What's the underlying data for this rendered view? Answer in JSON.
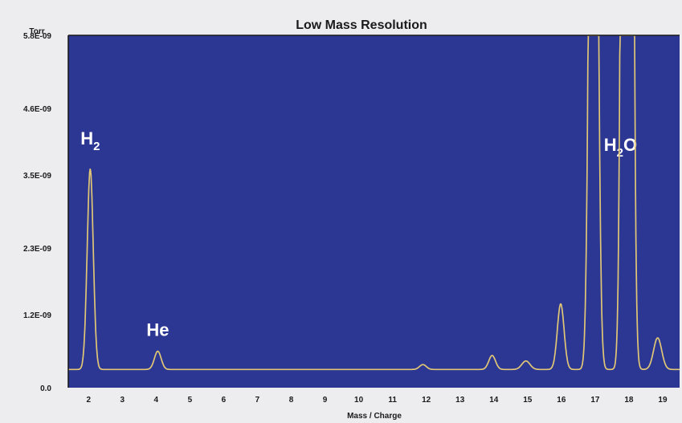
{
  "chart_data": {
    "type": "line",
    "title": "Low Mass Resolution",
    "ylabel": "Torr",
    "xlabel": "Mass / Charge",
    "ylim": [
      0,
      5.8e-09
    ],
    "xlim": [
      1.4,
      19.5
    ],
    "x_ticks": [
      2,
      3,
      4,
      5,
      6,
      7,
      8,
      9,
      10,
      11,
      12,
      13,
      14,
      15,
      16,
      17,
      18,
      19
    ],
    "y_ticks": [
      {
        "value": 5.8e-09,
        "label": "5.8E-09"
      },
      {
        "value": 4.6e-09,
        "label": "4.6E-09"
      },
      {
        "value": 3.5e-09,
        "label": "3.5E-09"
      },
      {
        "value": 2.3e-09,
        "label": "2.3E-09"
      },
      {
        "value": 1.2e-09,
        "label": "1.2E-09"
      },
      {
        "value": 0,
        "label": "0.0"
      }
    ],
    "grid": false,
    "colors": {
      "background": "#2c3794",
      "line": "#e0c675",
      "frame": "#ededf0"
    },
    "baseline": 3e-10,
    "series": [
      {
        "peaks": [
          {
            "x": 2.05,
            "height": 3.6e-09,
            "width": 0.09
          },
          {
            "x": 4.05,
            "height": 6e-10,
            "width": 0.1
          },
          {
            "x": 11.9,
            "height": 3.8e-10,
            "width": 0.1
          },
          {
            "x": 13.95,
            "height": 5.3e-10,
            "width": 0.1
          },
          {
            "x": 14.95,
            "height": 4.4e-10,
            "width": 0.12
          },
          {
            "x": 15.98,
            "height": 1.38e-09,
            "width": 0.1
          },
          {
            "x": 16.95,
            "height": 2e-08,
            "width": 0.1
          },
          {
            "x": 17.95,
            "height": 6e-08,
            "width": 0.1
          },
          {
            "x": 18.85,
            "height": 8.2e-10,
            "width": 0.12
          }
        ]
      }
    ],
    "annotations": [
      {
        "base": "H",
        "sub": "2",
        "suffix": "",
        "x": 2.05,
        "y": 4e-09
      },
      {
        "base": "He",
        "sub": "",
        "suffix": "",
        "x": 4.05,
        "y": 8.5e-10
      },
      {
        "base": "H",
        "sub": "2",
        "suffix": "O",
        "x": 17.75,
        "y": 3.9e-09
      }
    ]
  }
}
